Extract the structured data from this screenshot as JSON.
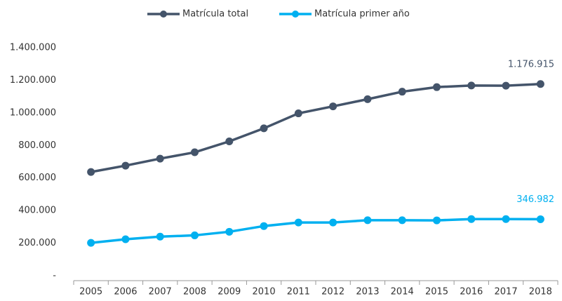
{
  "chart_data": {
    "type": "line",
    "categories": [
      "2005",
      "2006",
      "2007",
      "2008",
      "2009",
      "2010",
      "2011",
      "2012",
      "2013",
      "2014",
      "2015",
      "2016",
      "2017",
      "2018"
    ],
    "series": [
      {
        "name": "Matrícula total",
        "color": "#44546a",
        "values": [
          637000,
          676000,
          719000,
          758000,
          825000,
          905000,
          997000,
          1040000,
          1084000,
          1130000,
          1158000,
          1168000,
          1167000,
          1176915
        ],
        "value_labels": [
          null,
          null,
          null,
          null,
          null,
          null,
          null,
          null,
          null,
          null,
          null,
          null,
          null,
          "1.176.915"
        ]
      },
      {
        "name": "Matrícula primer año",
        "color": "#00b0f0",
        "values": [
          202000,
          224000,
          240000,
          248000,
          270000,
          305000,
          327000,
          327000,
          341000,
          341000,
          340000,
          348000,
          348000,
          346982
        ],
        "value_labels": [
          null,
          null,
          null,
          null,
          null,
          null,
          null,
          null,
          null,
          null,
          null,
          null,
          null,
          "346.982"
        ]
      }
    ],
    "ylim": [
      0,
      1400000
    ],
    "yticks": [
      {
        "value": 0,
        "label": "-"
      },
      {
        "value": 200000,
        "label": "200.000"
      },
      {
        "value": 400000,
        "label": "400.000"
      },
      {
        "value": 600000,
        "label": "600.000"
      },
      {
        "value": 800000,
        "label": "800.000"
      },
      {
        "value": 1000000,
        "label": "1.000.000"
      },
      {
        "value": 1200000,
        "label": "1.200.000"
      },
      {
        "value": 1400000,
        "label": "1.400.000"
      }
    ],
    "grid": false,
    "legend": "top"
  }
}
